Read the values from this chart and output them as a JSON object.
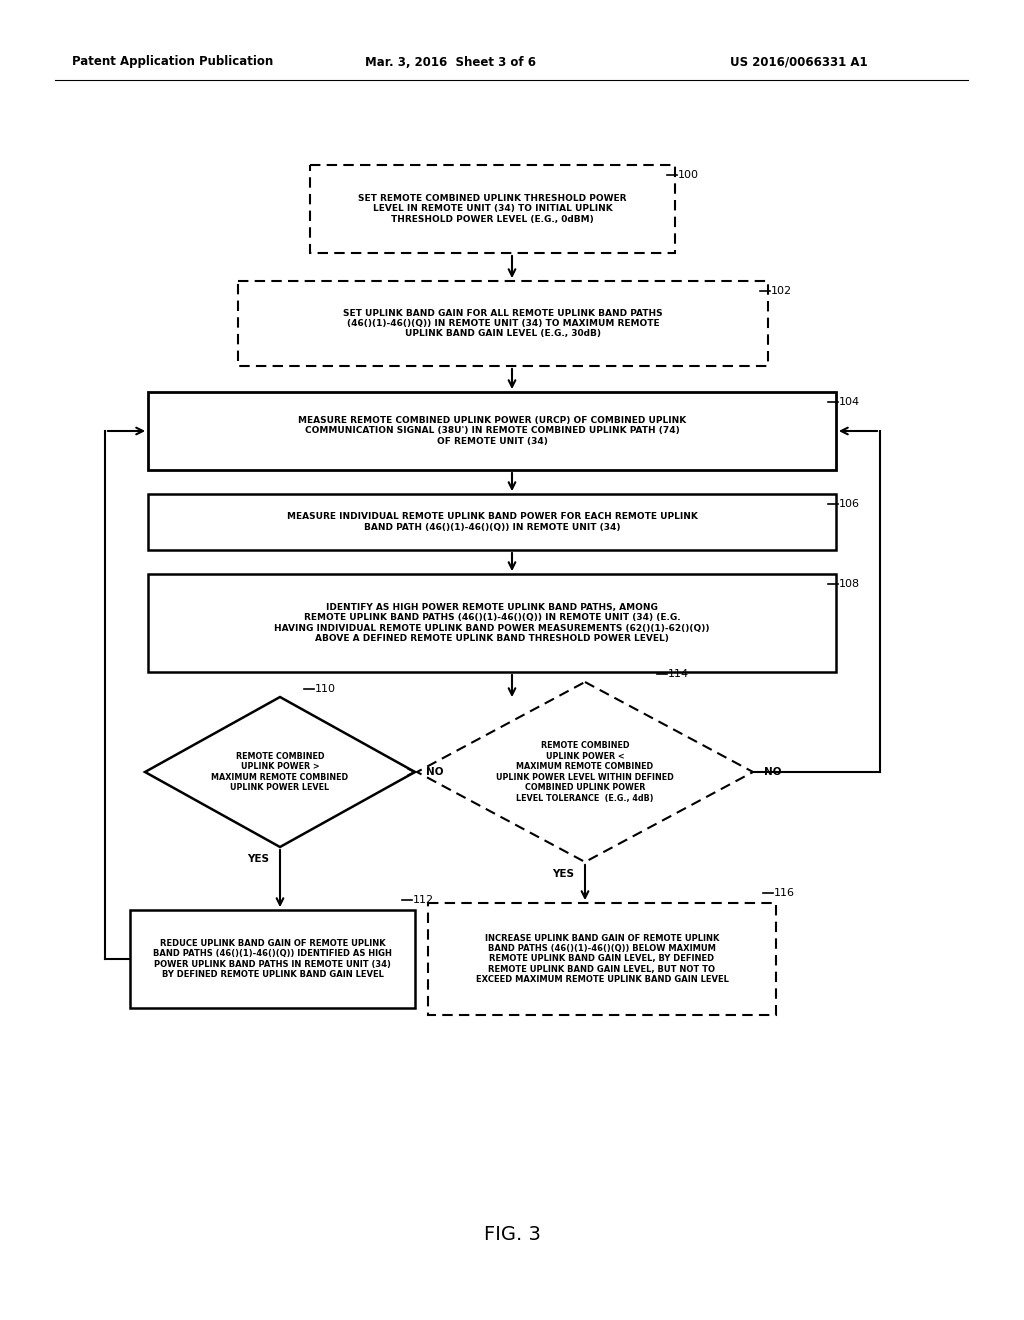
{
  "header_left": "Patent Application Publication",
  "header_mid": "Mar. 3, 2016  Sheet 3 of 6",
  "header_right": "US 2016/0066331 A1",
  "fig_label": "FIG. 3",
  "box100_text": "SET REMOTE COMBINED UPLINK THRESHOLD POWER\nLEVEL IN REMOTE UNIT (34) TO INITIAL UPLINK\nTHRESHOLD POWER LEVEL (E.G., 0dBM)",
  "box102_text": "SET UPLINK BAND GAIN FOR ALL REMOTE UPLINK BAND PATHS\n(46()(1)-46()(Q)) IN REMOTE UNIT (34) TO MAXIMUM REMOTE\nUPLINK BAND GAIN LEVEL (E.G., 30dB)",
  "box104_text": "MEASURE REMOTE COMBINED UPLINK POWER (URCP) OF COMBINED UPLINK\nCOMMUNICATION SIGNAL (38U') IN REMOTE COMBINED UPLINK PATH (74)\nOF REMOTE UNIT (34)",
  "box106_text": "MEASURE INDIVIDUAL REMOTE UPLINK BAND POWER FOR EACH REMOTE UPLINK\nBAND PATH (46()(1)-46()(Q)) IN REMOTE UNIT (34)",
  "box108_text": "IDENTIFY AS HIGH POWER REMOTE UPLINK BAND PATHS, AMONG\nREMOTE UPLINK BAND PATHS (46()(1)-46()(Q)) IN REMOTE UNIT (34) (E.G.\nHAVING INDIVIDUAL REMOTE UPLINK BAND POWER MEASUREMENTS (62()(1)-62()(Q))\nABOVE A DEFINED REMOTE UPLINK BAND THRESHOLD POWER LEVEL)",
  "diamond110_text": "REMOTE COMBINED\nUPLINK POWER >\nMAXIMUM REMOTE COMBINED\nUPLINK POWER LEVEL",
  "diamond114_text": "REMOTE COMBINED\nUPLINK POWER <\nMAXIMUM REMOTE COMBINED\nUPLINK POWER LEVEL WITHIN DEFINED\nCOMBINED UPLINK POWER\nLEVEL TOLERANCE  (E.G., 4dB)",
  "box112_text": "REDUCE UPLINK BAND GAIN OF REMOTE UPLINK\nBAND PATHS (46()(1)-46()(Q)) IDENTIFIED AS HIGH\nPOWER UPLINK BAND PATHS IN REMOTE UNIT (34)\nBY DEFINED REMOTE UPLINK BAND GAIN LEVEL",
  "box116_text": "INCREASE UPLINK BAND GAIN OF REMOTE UPLINK\nBAND PATHS (46()(1)-46()(Q)) BELOW MAXIMUM\nREMOTE UPLINK BAND GAIN LEVEL, BY DEFINED\nREMOTE UPLINK BAND GAIN LEVEL, BUT NOT TO\nEXCEED MAXIMUM REMOTE UPLINK BAND GAIN LEVEL",
  "bg_color": "#ffffff",
  "line_color": "#000000",
  "text_color": "#000000"
}
